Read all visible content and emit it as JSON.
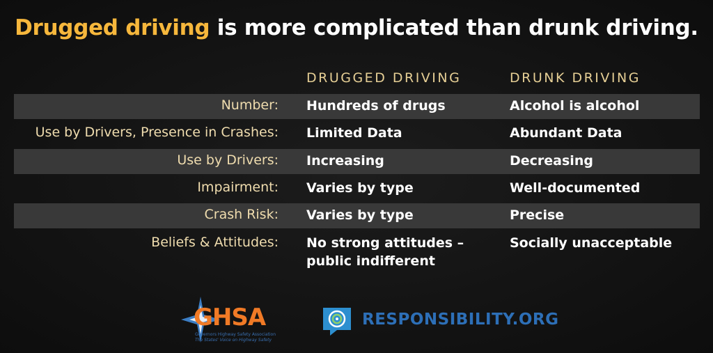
{
  "title": {
    "highlight": "Drugged driving",
    "rest": "is more complicated than drunk driving."
  },
  "table": {
    "columns": [
      "DRUGGED DRIVING",
      "DRUNK DRIVING"
    ],
    "rows": [
      [
        "Number:",
        "Hundreds of drugs",
        "Alcohol is alcohol"
      ],
      [
        "Use by Drivers, Presence in Crashes:",
        "Limited Data",
        "Abundant Data"
      ],
      [
        "Use by Drivers:",
        "Increasing",
        "Decreasing"
      ],
      [
        "Impairment:",
        "Varies by type",
        "Well-documented"
      ],
      [
        "Crash Risk:",
        "Varies by type",
        "Precise"
      ],
      [
        "Beliefs & Attitudes:",
        "No strong attitudes – public indifferent",
        "Socially unacceptable"
      ]
    ]
  },
  "logos": {
    "ghsa": {
      "name": "GHSA",
      "full_name": "Governors Highway Safety Association",
      "tagline": "The States' Voice on Highway Safety"
    },
    "responsibility": "RESPONSIBILITY.ORG"
  }
}
